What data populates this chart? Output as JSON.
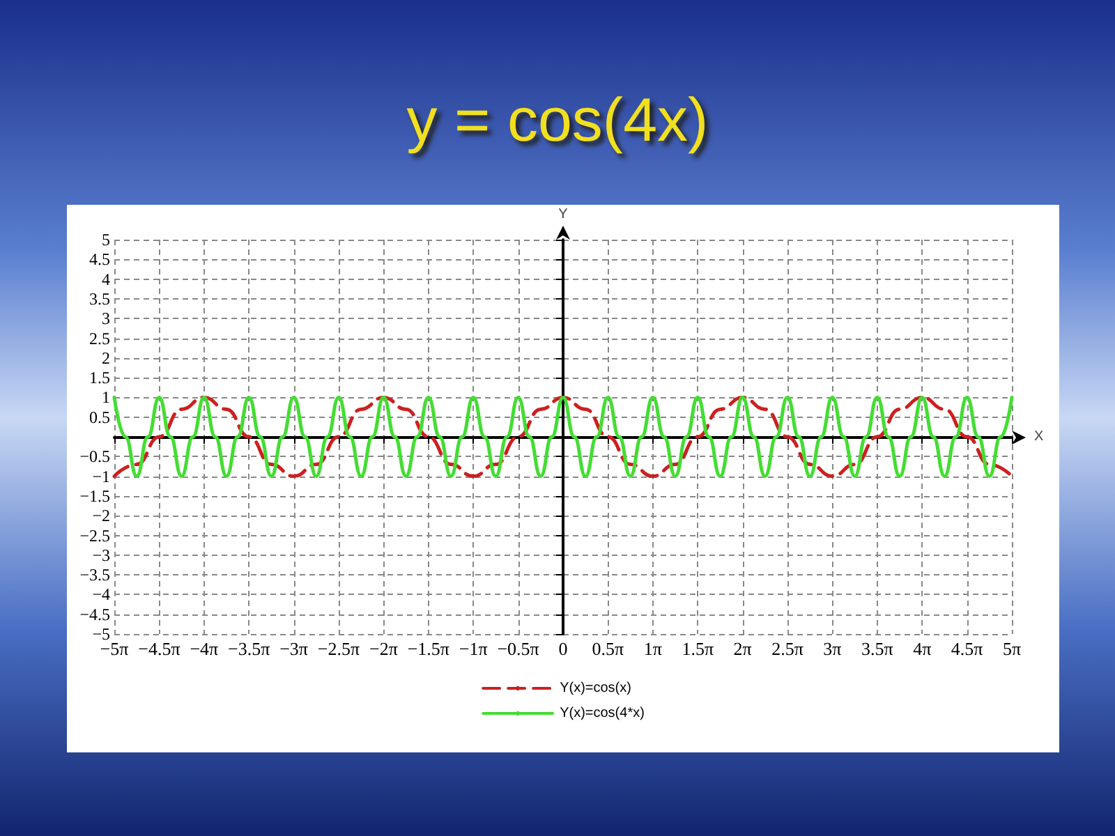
{
  "chart_data": {
    "type": "line",
    "title": "y = cos(4x)",
    "xlabel": "X",
    "ylabel": "Y",
    "xlim": [
      -15.708,
      15.708
    ],
    "ylim": [
      -5,
      5
    ],
    "xticks": [
      {
        "value": -15.708,
        "label": "−5π"
      },
      {
        "value": -14.1372,
        "label": "−4.5π"
      },
      {
        "value": -12.5664,
        "label": "−4π"
      },
      {
        "value": -10.9956,
        "label": "−3.5π"
      },
      {
        "value": -9.4248,
        "label": "−3π"
      },
      {
        "value": -7.854,
        "label": "−2.5π"
      },
      {
        "value": -6.2832,
        "label": "−2π"
      },
      {
        "value": -4.7124,
        "label": "−1.5π"
      },
      {
        "value": -3.1416,
        "label": "−1π"
      },
      {
        "value": -1.5708,
        "label": "−0.5π"
      },
      {
        "value": 0,
        "label": "0"
      },
      {
        "value": 1.5708,
        "label": "0.5π"
      },
      {
        "value": 3.1416,
        "label": "1π"
      },
      {
        "value": 4.7124,
        "label": "1.5π"
      },
      {
        "value": 6.2832,
        "label": "2π"
      },
      {
        "value": 7.854,
        "label": "2.5π"
      },
      {
        "value": 9.4248,
        "label": "3π"
      },
      {
        "value": 10.9956,
        "label": "3.5π"
      },
      {
        "value": 12.5664,
        "label": "4π"
      },
      {
        "value": 14.1372,
        "label": "4.5π"
      },
      {
        "value": 15.708,
        "label": "5π"
      }
    ],
    "yticks": [
      {
        "value": -5,
        "label": "−5"
      },
      {
        "value": -4.5,
        "label": "−4.5"
      },
      {
        "value": -4,
        "label": "−4"
      },
      {
        "value": -3.5,
        "label": "−3.5"
      },
      {
        "value": -3,
        "label": "−3"
      },
      {
        "value": -2.5,
        "label": "−2.5"
      },
      {
        "value": -2,
        "label": "−2"
      },
      {
        "value": -1.5,
        "label": "−1.5"
      },
      {
        "value": -1,
        "label": "−1"
      },
      {
        "value": -0.5,
        "label": "−0.5"
      },
      {
        "value": 0,
        "label": null
      },
      0.5,
      1,
      1.5,
      2,
      2.5,
      3,
      3.5,
      4,
      4.5,
      5
    ],
    "grid": true,
    "legend": "bottom",
    "marker": "none",
    "series": [
      {
        "name": "Y(x)=cos(x)",
        "color": "#cc2020",
        "line_style": "dashed",
        "x": [
          -15.708,
          -14.9226,
          -14.1372,
          -13.3518,
          -12.5664,
          -11.781,
          -10.9956,
          -10.2102,
          -9.4248,
          -8.6394,
          -7.854,
          -7.0686,
          -6.2832,
          -5.4978,
          -4.7124,
          -3.927,
          -3.1416,
          -2.3562,
          -1.5708,
          -0.7854,
          0,
          0.7854,
          1.5708,
          2.3562,
          3.1416,
          3.927,
          4.7124,
          5.4978,
          6.2832,
          7.0686,
          7.854,
          8.6394,
          9.4248,
          10.2102,
          10.9956,
          11.781,
          12.5664,
          13.3518,
          14.1372,
          14.9226,
          15.708
        ],
        "values": [
          -1,
          -0.7,
          0,
          0.7,
          1,
          0.7,
          0,
          -0.7,
          -1,
          -0.7,
          0,
          0.7,
          1,
          0.7,
          0,
          -0.7,
          -1,
          -0.7,
          0,
          0.7,
          1,
          0.7,
          0,
          -0.7,
          -1,
          -0.7,
          0,
          0.7,
          1,
          0.7,
          0,
          -0.7,
          -1,
          -0.7,
          0,
          0.7,
          1,
          0.7,
          0,
          -0.7,
          -1
        ]
      },
      {
        "name": "Y(x)=cos(4*x)",
        "color": "#44dd33",
        "line_style": "solid",
        "x": [
          -15.708,
          -15.3153,
          -14.9226,
          -14.5299,
          -14.1372,
          -13.7445,
          -13.3518,
          -12.9591,
          -12.5664,
          -12.1737,
          -11.781,
          -11.3883,
          -10.9956,
          -10.6029,
          -10.2102,
          -9.8175,
          -9.4248,
          -9.0321,
          -8.6394,
          -8.2467,
          -7.854,
          -7.4613,
          -7.0686,
          -6.6759,
          -6.2832,
          -5.8905,
          -5.4978,
          -5.1051,
          -4.7124,
          -4.3197,
          -3.927,
          -3.5343,
          -3.1416,
          -2.7489,
          -2.3562,
          -1.9635,
          -1.5708,
          -1.1781,
          -0.7854,
          -0.3927,
          0,
          0.3927,
          0.7854,
          1.1781,
          1.5708,
          1.9635,
          2.3562,
          2.7489,
          3.1416,
          3.5343,
          3.927,
          4.3197,
          4.7124,
          5.1051,
          5.4978,
          5.8905,
          6.2832,
          6.6759,
          7.0686,
          7.4613,
          7.854,
          8.2467,
          8.6394,
          9.0321,
          9.4248,
          9.8175,
          10.2102,
          10.6029,
          10.9956,
          11.3883,
          11.781,
          12.1737,
          12.5664,
          12.9591,
          13.3518,
          13.7445,
          14.1372,
          14.5299,
          14.9226,
          15.3153,
          15.708
        ],
        "values": [
          1,
          0,
          -1,
          0,
          1,
          0,
          -1,
          0,
          1,
          0,
          -1,
          0,
          1,
          0,
          -1,
          0,
          1,
          0,
          -1,
          0,
          1,
          0,
          -1,
          0,
          1,
          0,
          -1,
          0,
          1,
          0,
          -1,
          0,
          1,
          0,
          -1,
          0,
          1,
          0,
          -1,
          0,
          1,
          0,
          -1,
          0,
          1,
          0,
          -1,
          0,
          1,
          0,
          -1,
          0,
          1,
          0,
          -1,
          0,
          1,
          0,
          -1,
          0,
          1,
          0,
          -1,
          0,
          1,
          0,
          -1,
          0,
          1,
          0,
          -1,
          0,
          1,
          0,
          -1,
          0,
          1,
          0,
          -1,
          0,
          1
        ]
      }
    ]
  }
}
